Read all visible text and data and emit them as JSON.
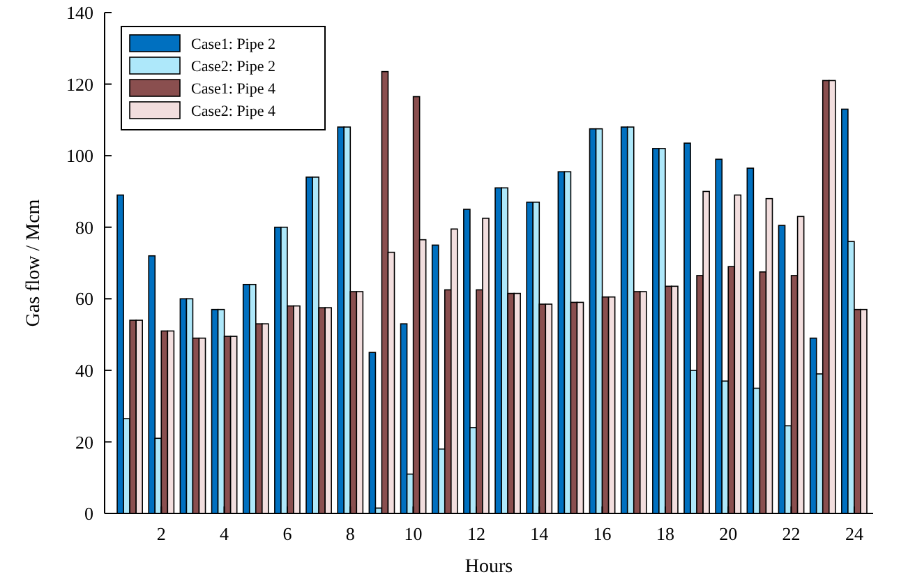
{
  "chart_data": {
    "type": "bar",
    "xlabel": "Hours",
    "ylabel": "Gas flow / Mcm",
    "x": [
      1,
      2,
      3,
      4,
      5,
      6,
      7,
      8,
      9,
      10,
      11,
      12,
      13,
      14,
      15,
      16,
      17,
      18,
      19,
      20,
      21,
      22,
      23,
      24
    ],
    "xlim": [
      0.2,
      24.6
    ],
    "xticks": [
      2,
      4,
      6,
      8,
      10,
      12,
      14,
      16,
      18,
      20,
      22,
      24
    ],
    "series": [
      {
        "name": "Case1: Pipe 2",
        "color": "#0070c0",
        "values": [
          89,
          72,
          60,
          57,
          64,
          80,
          94,
          108,
          45,
          53,
          75,
          85,
          91,
          87,
          95.5,
          107.5,
          108,
          102,
          103.5,
          99,
          96.5,
          80.5,
          49,
          113
        ]
      },
      {
        "name": "Case2: Pipe 2",
        "color": "#aee8fa",
        "values": [
          26.5,
          21,
          60,
          57,
          64,
          80,
          94,
          108,
          1.5,
          11,
          18,
          24,
          91,
          87,
          95.5,
          107.5,
          108,
          102,
          40,
          37,
          35,
          24.5,
          39,
          76
        ]
      },
      {
        "name": "Case1: Pipe 4",
        "color": "#8a4f4f",
        "values": [
          54,
          51,
          49,
          49.5,
          53,
          58,
          57.5,
          62,
          123.5,
          116.5,
          62.5,
          62.5,
          61.5,
          58.5,
          59,
          60.5,
          62,
          63.5,
          66.5,
          69,
          67.5,
          66.5,
          121,
          57
        ]
      },
      {
        "name": "Case2: Pipe 4",
        "color": "#f2dede",
        "values": [
          54,
          51,
          49,
          49.5,
          53,
          58,
          57.5,
          62,
          73,
          76.5,
          79.5,
          82.5,
          61.5,
          58.5,
          59,
          60.5,
          62,
          63.5,
          90,
          89,
          88,
          83,
          121,
          57
        ]
      }
    ],
    "ylim": [
      0,
      140
    ],
    "yticks": [
      0,
      20,
      40,
      60,
      80,
      100,
      120,
      140
    ],
    "grid": false,
    "legend": "top left"
  }
}
